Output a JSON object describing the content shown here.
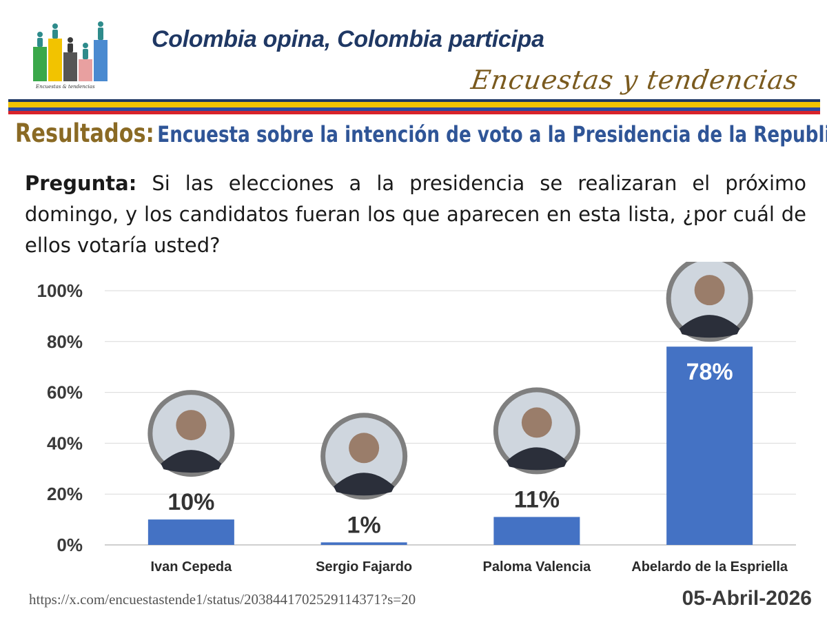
{
  "header": {
    "slogan": "Colombia opina, Colombia participa",
    "brand_script": "Encuestas y tendencias",
    "logo_caption": "Encuestas & tendencias"
  },
  "titles": {
    "prefix": "Resultados:",
    "main": "Encuesta sobre la intención de voto a la  Presidencia de la Republica"
  },
  "question": {
    "label": "Pregunta:",
    "text": "Si las elecciones a la presidencia se realizaran el próximo domingo, y los candidatos fueran los que aparecen en esta lista, ¿por cuál de ellos votaría usted?"
  },
  "colors": {
    "bar": "#4472c4",
    "grid": "#d9d9d9",
    "photo_ring": "#7f7f7f",
    "value_inside": "#ffffff",
    "value_outside": "#333333"
  },
  "chart_data": {
    "type": "bar",
    "categories": [
      "Ivan Cepeda",
      "Sergio Fajardo",
      "Paloma Valencia",
      "Abelardo de la Espriella"
    ],
    "values": [
      10,
      1,
      11,
      78
    ],
    "value_labels": [
      "10%",
      "1%",
      "11%",
      "78%"
    ],
    "ylim": [
      0,
      100
    ],
    "yticks": [
      "0%",
      "20%",
      "40%",
      "60%",
      "80%",
      "100%"
    ],
    "ytick_values": [
      0,
      20,
      40,
      60,
      80,
      100
    ],
    "grid": true,
    "legend": "none",
    "title": "",
    "xlabel": "",
    "ylabel": ""
  },
  "footer": {
    "source_url": "https://x.com/encuestastende1/status/2038441702529114371?s=20",
    "date": "05-Abril-2026"
  }
}
